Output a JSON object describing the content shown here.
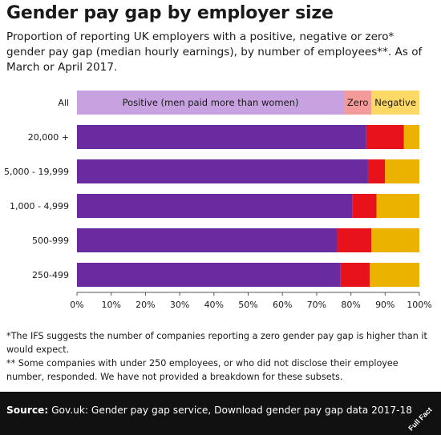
{
  "title": "Gender pay gap by employer size",
  "subtitle": "Proportion of reporting UK employers with a positive, negative or zero* gender pay gap (median hourly earnings), by number of employees**. As of March or April 2017.",
  "notes": [
    "*The IFS suggests the number of companies reporting a zero gender pay gap is higher than it would expect.",
    "** Some companies with under 250 employees, or who did not disclose their employee number, responded. We have not provided a breakdown for these subsets."
  ],
  "footer": {
    "source_label": "Source:",
    "source_text": "Gov.uk: Gender pay gap service, Download gender pay gap data 2017-18",
    "logo_text": "Full Fact"
  },
  "chart_data": {
    "type": "bar",
    "orientation": "horizontal",
    "stacked": true,
    "percent": true,
    "categories": [
      "All",
      "20,000 +",
      "5,000 - 19,999",
      "1,000 - 4,999",
      "500-999",
      "250-499"
    ],
    "series": [
      {
        "name": "Positive (men paid more than women)",
        "color_all": "#c8a2e0",
        "color": "#6a2aa0",
        "values": [
          78,
          84.5,
          85,
          80.5,
          76,
          77
        ]
      },
      {
        "name": "Zero",
        "color_all": "#f59a9a",
        "color": "#e8121b",
        "values": [
          8,
          11,
          5,
          7,
          10,
          8.5
        ]
      },
      {
        "name": "Negative",
        "color_all": "#ffd966",
        "color": "#ecb200",
        "values": [
          14,
          4.5,
          10,
          12.5,
          14,
          14.5
        ]
      }
    ],
    "xlim": [
      0,
      100
    ],
    "xticks": [
      "0%",
      "10%",
      "20%",
      "30%",
      "40%",
      "50%",
      "60%",
      "70%",
      "80%",
      "90%",
      "100%"
    ],
    "legend_in_first_bar": true,
    "grid": false
  }
}
